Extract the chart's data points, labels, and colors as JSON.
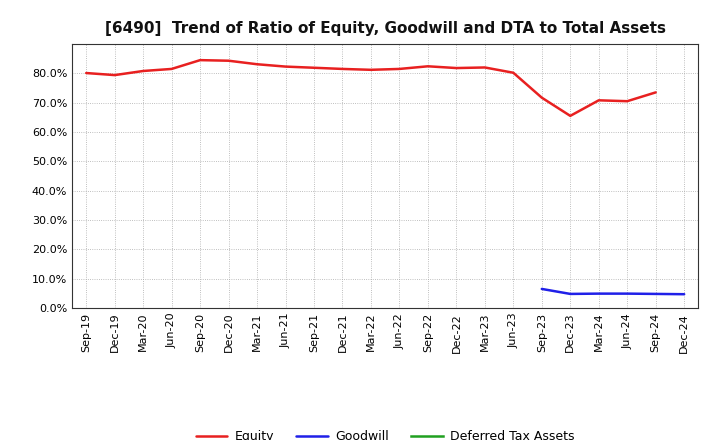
{
  "title": "[6490]  Trend of Ratio of Equity, Goodwill and DTA to Total Assets",
  "x_labels": [
    "Sep-19",
    "Dec-19",
    "Mar-20",
    "Jun-20",
    "Sep-20",
    "Dec-20",
    "Mar-21",
    "Jun-21",
    "Sep-21",
    "Dec-21",
    "Mar-22",
    "Jun-22",
    "Sep-22",
    "Dec-22",
    "Mar-23",
    "Jun-23",
    "Sep-23",
    "Dec-23",
    "Mar-24",
    "Jun-24",
    "Sep-24",
    "Dec-24"
  ],
  "equity": [
    80.1,
    79.4,
    80.8,
    81.5,
    84.5,
    84.3,
    83.1,
    82.3,
    81.9,
    81.5,
    81.2,
    81.5,
    82.4,
    81.8,
    82.0,
    80.2,
    71.7,
    65.5,
    70.8,
    70.5,
    73.5,
    null
  ],
  "goodwill": [
    null,
    null,
    null,
    null,
    null,
    null,
    null,
    null,
    null,
    null,
    null,
    null,
    null,
    null,
    null,
    null,
    6.5,
    4.8,
    4.9,
    4.9,
    4.8,
    4.7
  ],
  "dta": [
    null,
    null,
    null,
    null,
    null,
    null,
    null,
    null,
    null,
    null,
    null,
    null,
    null,
    null,
    null,
    null,
    null,
    null,
    null,
    null,
    null,
    null
  ],
  "equity_color": "#e82020",
  "goodwill_color": "#2020e8",
  "dta_color": "#20a020",
  "ylim": [
    0,
    90
  ],
  "yticks": [
    0,
    10,
    20,
    30,
    40,
    50,
    60,
    70,
    80
  ],
  "legend_labels": [
    "Equity",
    "Goodwill",
    "Deferred Tax Assets"
  ],
  "background_color": "#ffffff",
  "grid_color": "#aaaaaa",
  "title_fontsize": 11,
  "tick_fontsize": 8,
  "legend_fontsize": 9
}
